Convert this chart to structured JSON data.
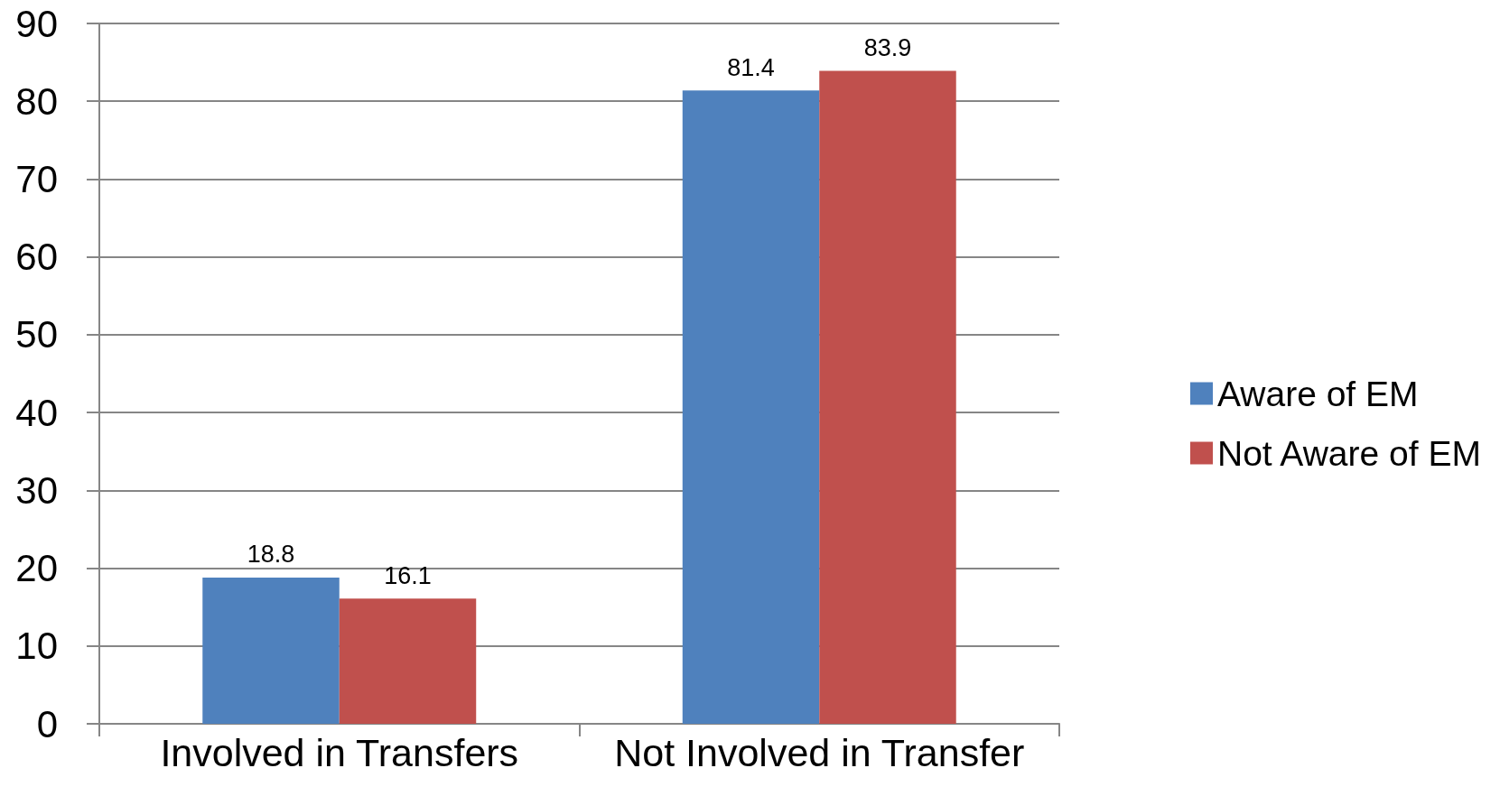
{
  "chart_data": {
    "type": "bar",
    "categories": [
      "Involved in Transfers",
      "Not Involved in Transfer"
    ],
    "series": [
      {
        "name": "Aware of EM",
        "color": "#4f81bd",
        "values": [
          18.8,
          81.4
        ]
      },
      {
        "name": "Not Aware of EM",
        "color": "#c0504d",
        "values": [
          16.1,
          83.9
        ]
      }
    ],
    "ylim": [
      0,
      90
    ],
    "yticks": [
      0,
      10,
      20,
      30,
      40,
      50,
      60,
      70,
      80,
      90
    ],
    "grid": "y",
    "legend": "right",
    "data_labels": true
  }
}
